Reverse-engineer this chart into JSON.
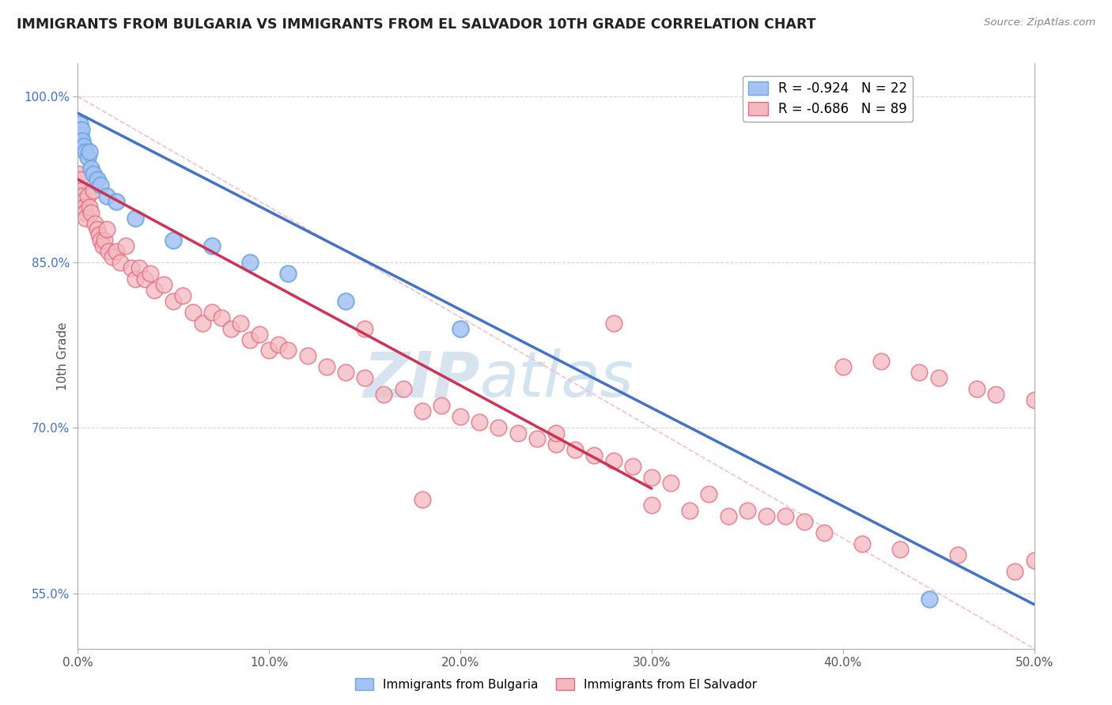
{
  "title": "IMMIGRANTS FROM BULGARIA VS IMMIGRANTS FROM EL SALVADOR 10TH GRADE CORRELATION CHART",
  "source": "Source: ZipAtlas.com",
  "xlabel_bottom": "Immigrants from Bulgaria",
  "xlabel_bottom2": "Immigrants from El Salvador",
  "ylabel": "10th Grade",
  "xlim": [
    0.0,
    50.0
  ],
  "ylim": [
    50.0,
    103.0
  ],
  "xticks": [
    0.0,
    10.0,
    20.0,
    30.0,
    40.0,
    50.0
  ],
  "ytick_vals": [
    55.0,
    70.0,
    85.0,
    100.0
  ],
  "ytick_labels": [
    "55.0%",
    "70.0%",
    "85.0%",
    "100.0%"
  ],
  "xtick_labels": [
    "0.0%",
    "10.0%",
    "20.0%",
    "30.0%",
    "40.0%",
    "50.0%"
  ],
  "legend_blue_label": "R = -0.924   N = 22",
  "legend_pink_label": "R = -0.686   N = 89",
  "blue_color": "#a4c2f4",
  "pink_color": "#f4b8c1",
  "blue_edge_color": "#6fa8dc",
  "pink_edge_color": "#e06c7c",
  "blue_line_color": "#4472c4",
  "pink_line_color": "#cc3355",
  "watermark_color": "#c8d8ed",
  "bg_color": "#ffffff",
  "grid_color": "#cccccc",
  "blue_scatter_x": [
    0.1,
    0.15,
    0.2,
    0.25,
    0.3,
    0.4,
    0.5,
    0.6,
    0.7,
    0.8,
    1.0,
    1.2,
    1.5,
    2.0,
    3.0,
    5.0,
    7.0,
    9.0,
    11.0,
    14.0,
    20.0,
    44.5
  ],
  "blue_scatter_y": [
    97.5,
    96.5,
    97.0,
    96.0,
    95.5,
    95.0,
    94.5,
    95.0,
    93.5,
    93.0,
    92.5,
    92.0,
    91.0,
    90.5,
    89.0,
    87.0,
    86.5,
    85.0,
    84.0,
    81.5,
    79.0,
    54.5
  ],
  "pink_scatter_x": [
    0.05,
    0.1,
    0.15,
    0.2,
    0.25,
    0.3,
    0.35,
    0.4,
    0.5,
    0.6,
    0.7,
    0.8,
    0.9,
    1.0,
    1.1,
    1.2,
    1.3,
    1.4,
    1.5,
    1.6,
    1.8,
    2.0,
    2.2,
    2.5,
    2.8,
    3.0,
    3.2,
    3.5,
    3.8,
    4.0,
    4.5,
    5.0,
    5.5,
    6.0,
    6.5,
    7.0,
    7.5,
    8.0,
    8.5,
    9.0,
    9.5,
    10.0,
    10.5,
    11.0,
    12.0,
    13.0,
    14.0,
    15.0,
    16.0,
    17.0,
    18.0,
    19.0,
    20.0,
    21.0,
    22.0,
    23.0,
    24.0,
    25.0,
    26.0,
    27.0,
    28.0,
    29.0,
    30.0,
    31.0,
    33.0,
    35.0,
    37.0,
    38.0,
    40.0,
    42.0,
    44.0,
    45.0,
    47.0,
    48.0,
    50.0,
    18.0,
    30.0,
    32.0,
    36.0,
    43.0,
    46.0,
    50.0,
    15.0,
    25.0,
    28.0,
    34.0,
    39.0,
    41.0,
    49.0
  ],
  "pink_scatter_y": [
    93.0,
    92.5,
    91.5,
    91.0,
    90.5,
    90.0,
    89.5,
    89.0,
    91.0,
    90.0,
    89.5,
    91.5,
    88.5,
    88.0,
    87.5,
    87.0,
    86.5,
    87.0,
    88.0,
    86.0,
    85.5,
    86.0,
    85.0,
    86.5,
    84.5,
    83.5,
    84.5,
    83.5,
    84.0,
    82.5,
    83.0,
    81.5,
    82.0,
    80.5,
    79.5,
    80.5,
    80.0,
    79.0,
    79.5,
    78.0,
    78.5,
    77.0,
    77.5,
    77.0,
    76.5,
    75.5,
    75.0,
    74.5,
    73.0,
    73.5,
    71.5,
    72.0,
    71.0,
    70.5,
    70.0,
    69.5,
    69.0,
    68.5,
    68.0,
    67.5,
    67.0,
    66.5,
    65.5,
    65.0,
    64.0,
    62.5,
    62.0,
    61.5,
    75.5,
    76.0,
    75.0,
    74.5,
    73.5,
    73.0,
    72.5,
    63.5,
    63.0,
    62.5,
    62.0,
    59.0,
    58.5,
    58.0,
    79.0,
    69.5,
    79.5,
    62.0,
    60.5,
    59.5,
    57.0
  ],
  "blue_line_x": [
    0.0,
    50.0
  ],
  "blue_line_y": [
    98.5,
    54.0
  ],
  "pink_line_x": [
    0.0,
    30.0
  ],
  "pink_line_y": [
    92.5,
    64.5
  ],
  "diag_line_x": [
    0.0,
    50.0
  ],
  "diag_line_y": [
    100.0,
    50.0
  ]
}
